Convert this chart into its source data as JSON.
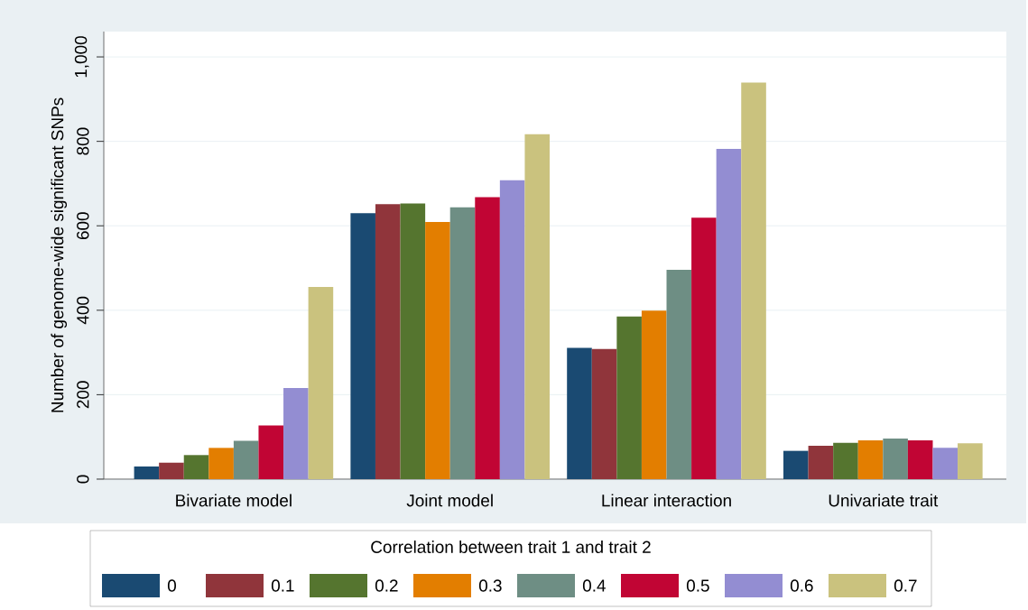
{
  "chart_data": {
    "type": "bar",
    "ylabel": "Number of genome-wide significant SNPs",
    "legend_title": "Correlation between trait 1 and trait 2",
    "categories": [
      "Bivariate model",
      "Joint model",
      "Linear interaction",
      "Univariate trait"
    ],
    "series": [
      {
        "name": "0",
        "color": "#1a4a72",
        "values": [
          30,
          630,
          311,
          67
        ]
      },
      {
        "name": "0.1",
        "color": "#90353b",
        "values": [
          39,
          651,
          308,
          79
        ]
      },
      {
        "name": "0.2",
        "color": "#55752f",
        "values": [
          57,
          653,
          385,
          86
        ]
      },
      {
        "name": "0.3",
        "color": "#e37e00",
        "values": [
          74,
          609,
          399,
          92
        ]
      },
      {
        "name": "0.4",
        "color": "#6e8e84",
        "values": [
          91,
          644,
          496,
          96
        ]
      },
      {
        "name": "0.5",
        "color": "#c10534",
        "values": [
          127,
          668,
          619,
          92
        ]
      },
      {
        "name": "0.6",
        "color": "#938dd2",
        "values": [
          216,
          708,
          782,
          74
        ]
      },
      {
        "name": "0.7",
        "color": "#cac27e",
        "values": [
          455,
          817,
          939,
          85
        ]
      }
    ],
    "ylim": [
      0,
      1060
    ],
    "yticks": [
      0,
      200,
      400,
      600,
      800,
      {
        "value": 1000,
        "label": "1,000"
      }
    ],
    "grid": "y",
    "legend": "bottom"
  }
}
